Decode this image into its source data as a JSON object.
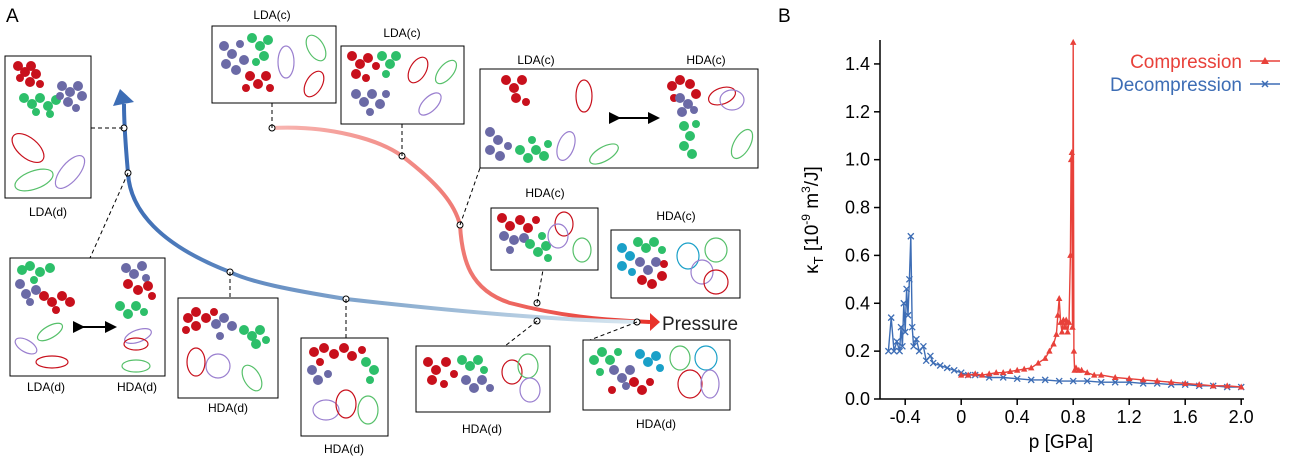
{
  "panel_a": {
    "letter": "A",
    "pressure_label": "Pressure",
    "insets": [
      {
        "id": "lda-d-top",
        "label": "LDA(d)"
      },
      {
        "id": "lda-c-1",
        "label": "LDA(c)"
      },
      {
        "id": "lda-c-2",
        "label": "LDA(c)"
      },
      {
        "id": "lda-c-hda-c",
        "label_left": "LDA(c)",
        "label_right": "HDA(c)"
      },
      {
        "id": "hda-c-1",
        "label": "HDA(c)"
      },
      {
        "id": "hda-c-2",
        "label": "HDA(c)"
      },
      {
        "id": "lda-d-hda-d",
        "label_left": "LDA(d)",
        "label_right": "HDA(d)"
      },
      {
        "id": "hda-d-1",
        "label": "HDA(d)"
      },
      {
        "id": "hda-d-2",
        "label": "HDA(d)"
      },
      {
        "id": "hda-d-3",
        "label": "HDA(d)"
      },
      {
        "id": "hda-d-4",
        "label": "HDA(d)"
      }
    ],
    "colors": {
      "compression": "#e8413a",
      "decompression": "#3d6db5",
      "red": "#c8101c",
      "green": "#2dbf6a",
      "purple": "#6b6aa6",
      "cyan": "#1aa0c8"
    }
  },
  "panel_b": {
    "letter": "B"
  },
  "chart_data": {
    "type": "line",
    "xlabel": "p [GPa]",
    "ylabel": "κ",
    "ylabel_sub": "T",
    "ylabel_unit": " [10",
    "ylabel_exp1": "-9",
    "ylabel_mid": " m",
    "ylabel_exp2": "3",
    "ylabel_end": "/J]",
    "xlim": [
      -0.58,
      2.02
    ],
    "ylim": [
      0,
      1.5
    ],
    "xticks": [
      -0.4,
      0,
      0.4,
      0.8,
      1.2,
      1.6,
      2.0
    ],
    "xtick_labels": [
      "-0.4",
      "0",
      "0.4",
      "0.8",
      "1.2",
      "1.6",
      "2.0"
    ],
    "yticks": [
      0,
      0.2,
      0.4,
      0.6,
      0.8,
      1.0,
      1.2,
      1.4
    ],
    "ytick_labels": [
      "0.0",
      "0.2",
      "0.4",
      "0.6",
      "0.8",
      "1.0",
      "1.2",
      "1.4"
    ],
    "legend": "top-right",
    "grid": false,
    "series": [
      {
        "name": "Compression",
        "color": "#e8413a",
        "marker": "triangle",
        "x": [
          0.0,
          0.05,
          0.1,
          0.15,
          0.2,
          0.25,
          0.3,
          0.35,
          0.4,
          0.45,
          0.5,
          0.55,
          0.6,
          0.63,
          0.66,
          0.68,
          0.69,
          0.7,
          0.71,
          0.72,
          0.73,
          0.74,
          0.75,
          0.76,
          0.77,
          0.78,
          0.785,
          0.79,
          0.795,
          0.8,
          0.805,
          0.81,
          0.82,
          0.84,
          0.86,
          0.9,
          0.95,
          1.0,
          1.1,
          1.2,
          1.3,
          1.4,
          1.5,
          1.6,
          1.7,
          1.8,
          1.9,
          2.0
        ],
        "y": [
          0.1,
          0.1,
          0.105,
          0.1,
          0.105,
          0.11,
          0.11,
          0.115,
          0.12,
          0.125,
          0.13,
          0.15,
          0.17,
          0.2,
          0.23,
          0.27,
          0.35,
          0.42,
          0.32,
          0.28,
          0.33,
          0.3,
          0.33,
          0.28,
          0.32,
          0.6,
          1.0,
          1.03,
          0.3,
          1.49,
          0.2,
          0.12,
          0.13,
          0.12,
          0.12,
          0.11,
          0.1,
          0.1,
          0.09,
          0.085,
          0.08,
          0.075,
          0.07,
          0.065,
          0.06,
          0.055,
          0.055,
          0.05
        ]
      },
      {
        "name": "Decompression",
        "color": "#3d6db5",
        "marker": "x",
        "x": [
          2.0,
          1.9,
          1.8,
          1.7,
          1.6,
          1.5,
          1.4,
          1.3,
          1.2,
          1.1,
          1.0,
          0.9,
          0.8,
          0.7,
          0.6,
          0.5,
          0.4,
          0.3,
          0.2,
          0.1,
          0.05,
          0.0,
          -0.05,
          -0.1,
          -0.15,
          -0.2,
          -0.22,
          -0.25,
          -0.27,
          -0.3,
          -0.32,
          -0.34,
          -0.35,
          -0.36,
          -0.37,
          -0.38,
          -0.39,
          -0.4,
          -0.41,
          -0.42,
          -0.43,
          -0.44,
          -0.46,
          -0.48,
          -0.5,
          -0.52
        ],
        "y": [
          0.05,
          0.05,
          0.055,
          0.055,
          0.06,
          0.06,
          0.065,
          0.065,
          0.07,
          0.07,
          0.07,
          0.075,
          0.075,
          0.075,
          0.08,
          0.08,
          0.085,
          0.09,
          0.09,
          0.1,
          0.1,
          0.11,
          0.12,
          0.13,
          0.14,
          0.15,
          0.18,
          0.16,
          0.22,
          0.2,
          0.25,
          0.22,
          0.3,
          0.68,
          0.5,
          0.35,
          0.46,
          0.28,
          0.4,
          0.22,
          0.3,
          0.2,
          0.24,
          0.2,
          0.34,
          0.2
        ]
      }
    ]
  }
}
